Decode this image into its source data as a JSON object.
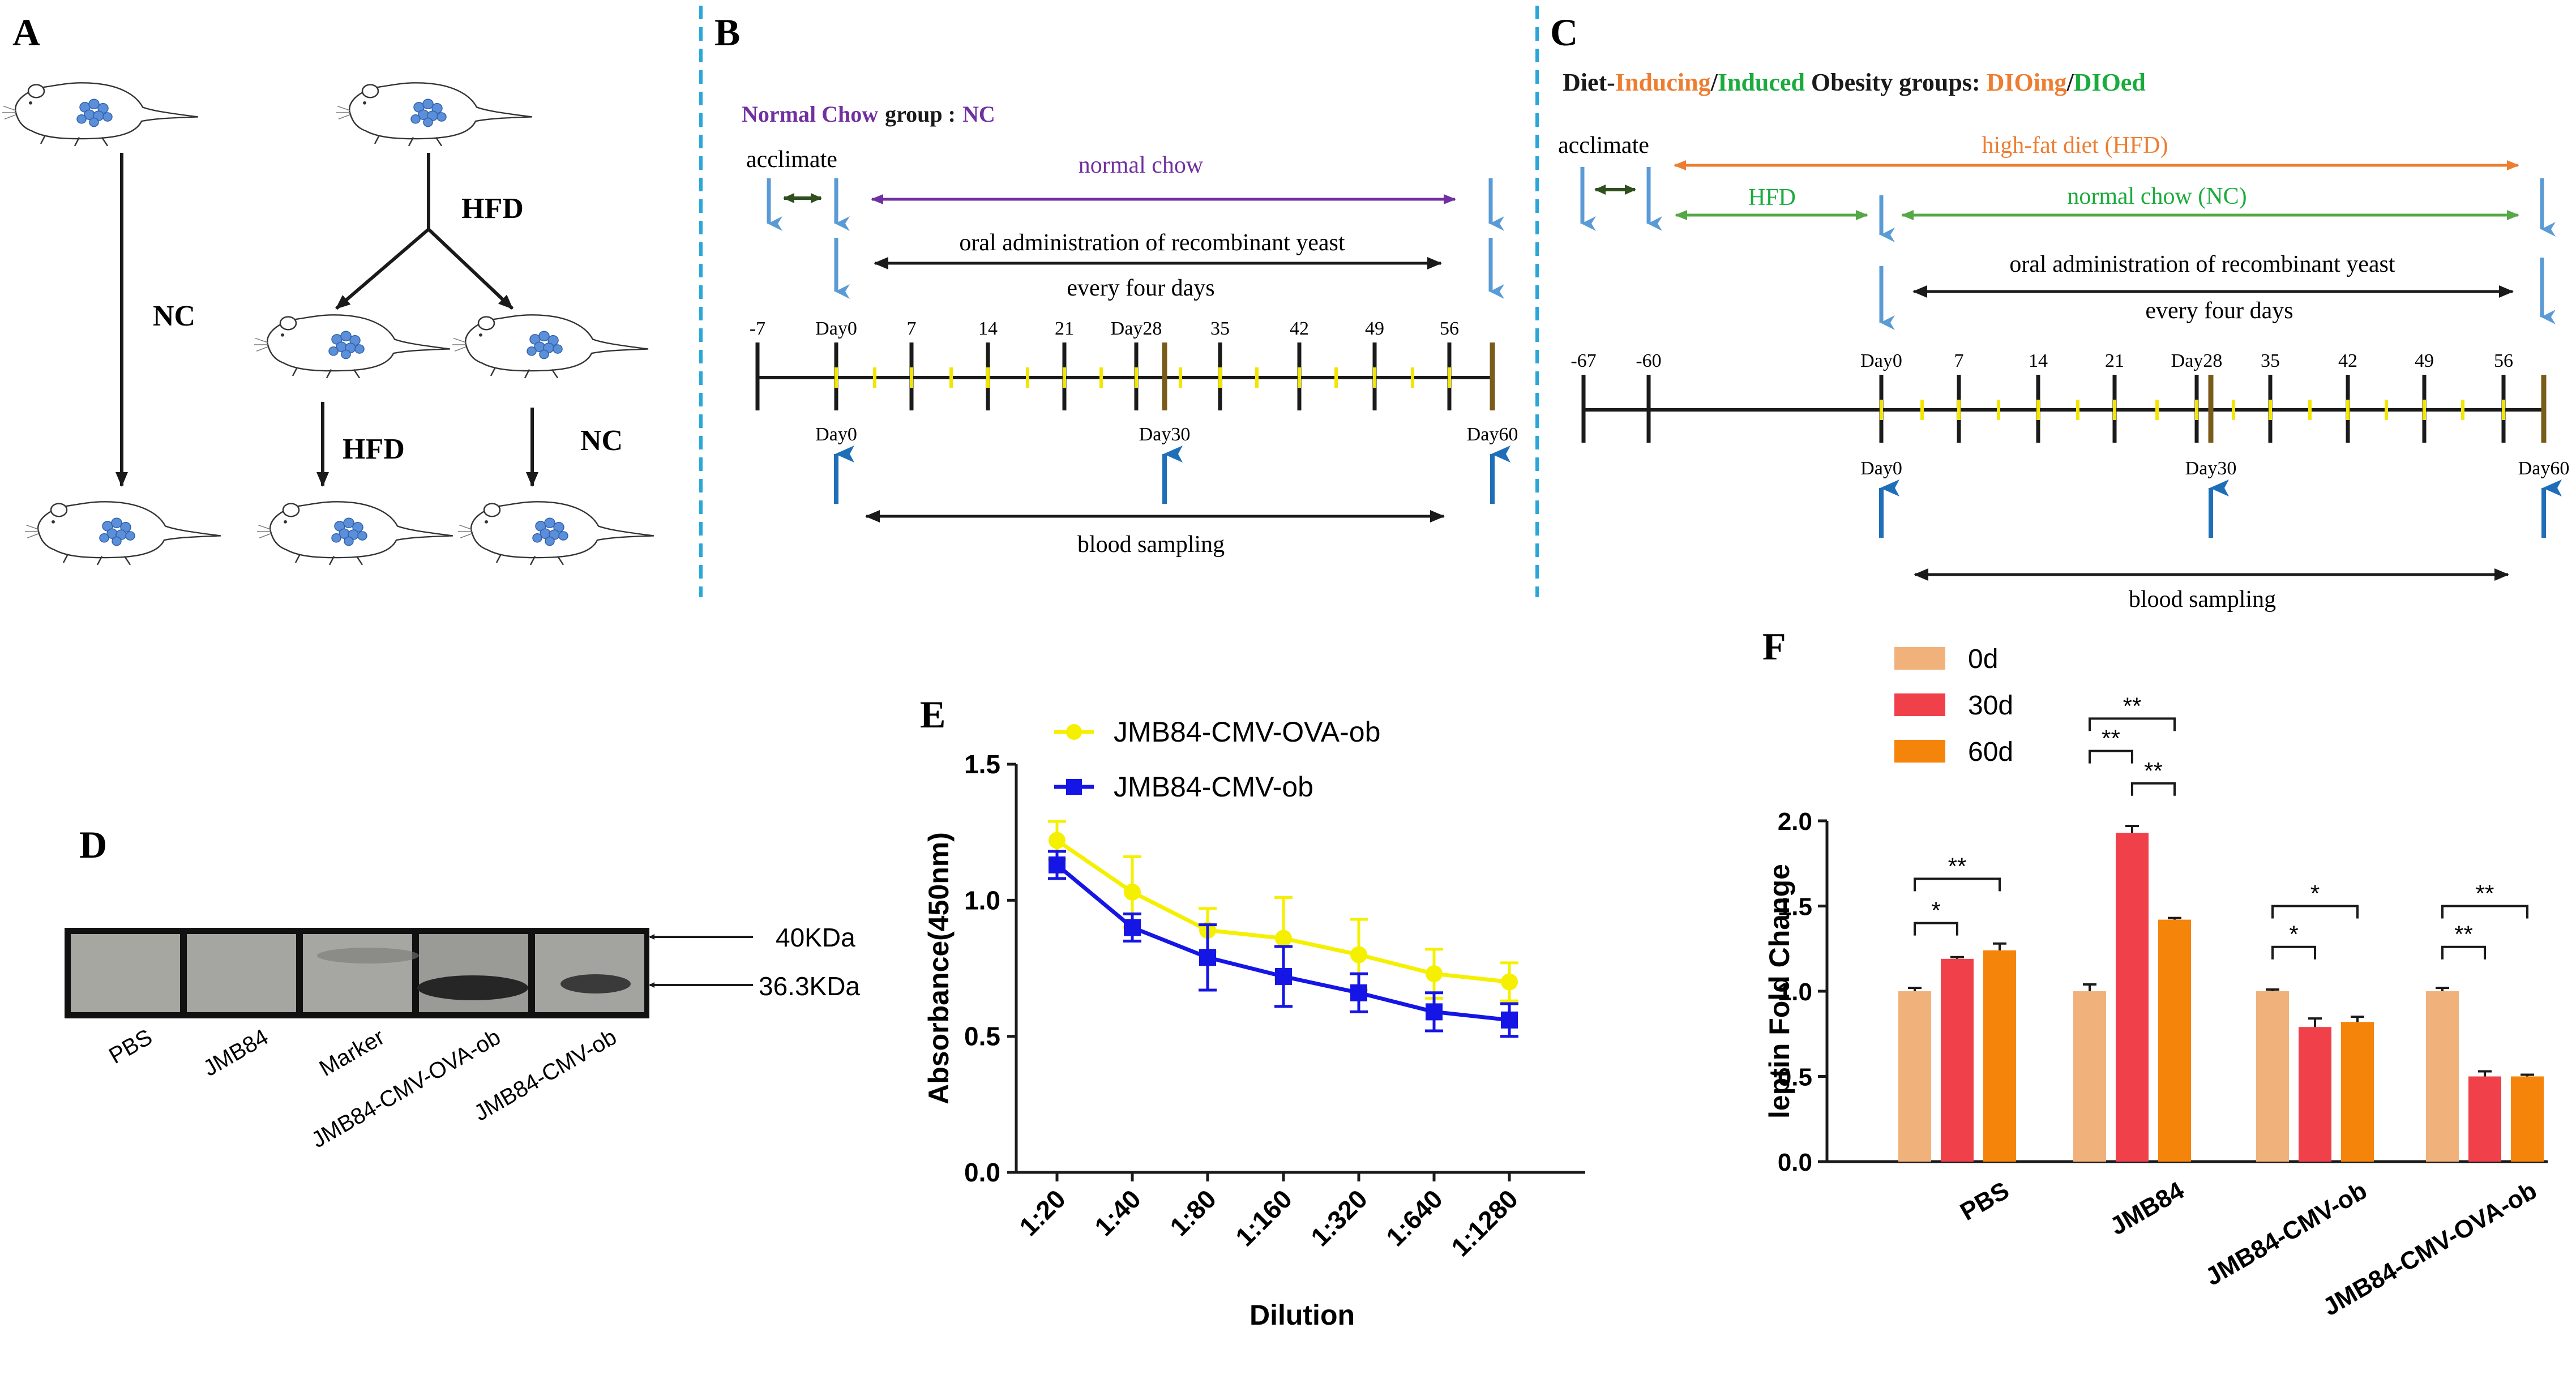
{
  "figure": {
    "panel_labels": {
      "a": "A",
      "b": "B",
      "c": "C",
      "d": "D",
      "e": "E",
      "f": "F"
    },
    "colors": {
      "black": "#1a1a1a",
      "light_blue_arrow": "#5b9bd5",
      "dark_blue_arrow": "#1f6fb8",
      "dark_green": "#2f4f1f",
      "purple": "#7030a0",
      "orange": "#ed7d31",
      "green": "#1aab3c",
      "yellow_mark": "#f2e600",
      "brown_mark": "#7a5c1a",
      "dashed_divider": "#2aa7d9",
      "mouse_organ": "#5b8fd9"
    }
  },
  "panel_a": {
    "labels": {
      "nc_main": "NC",
      "hfd_top": "HFD",
      "hfd_lower": "HFD",
      "nc_lower": "NC"
    }
  },
  "panel_b": {
    "title_nc": "Normal Chow",
    "title_group": "group :",
    "title_abbr": "NC",
    "acclimate": "acclimate",
    "normal_chow": "normal chow",
    "oral": "oral administration of recombinant yeast",
    "every": "every four days",
    "ticks": [
      "-7",
      "Day0",
      "7",
      "14",
      "21",
      "Day28",
      "35",
      "42",
      "49",
      "56"
    ],
    "days_below": [
      "Day0",
      "Day30",
      "Day60"
    ],
    "blood": "blood sampling"
  },
  "panel_c": {
    "title_diet": "Diet-",
    "title_inducing": "Inducing",
    "title_slash": "/",
    "title_induced": "Induced",
    "title_obesity": " Obesity groups: ",
    "title_dioing": "DIOing",
    "title_slash2": "/",
    "title_dioed": "DIOed",
    "acclimate": "acclimate",
    "hfd_long": "high-fat diet (HFD)",
    "hfd_short": "HFD",
    "nc": "normal chow (NC)",
    "oral": "oral administration of recombinant yeast",
    "every": "every four days",
    "ticks": [
      "-67",
      "-60",
      "Day0",
      "7",
      "14",
      "21",
      "Day28",
      "35",
      "42",
      "49",
      "56"
    ],
    "days_below": [
      "Day0",
      "Day30",
      "Day60"
    ],
    "blood": "blood sampling"
  },
  "panel_d": {
    "lanes": [
      "PBS",
      "JMB84",
      "Marker",
      "JMB84-CMV-OVA-ob",
      "JMB84-CMV-ob"
    ],
    "markers": [
      "40KDa",
      "36.3KDa"
    ]
  },
  "chart_data": [
    {
      "panel": "E",
      "type": "line",
      "title": "",
      "xlabel": "Dilution",
      "ylabel": "Absorbance(450nm)",
      "categories": [
        "1:20",
        "1:40",
        "1:80",
        "1:160",
        "1:320",
        "1:640",
        "1:1280"
      ],
      "ylim": [
        0.0,
        1.5
      ],
      "yticks": [
        "0.0",
        "0.5",
        "1.0",
        "1.5"
      ],
      "legend_position": "top",
      "series": [
        {
          "name": "JMB84-CMV-OVA-ob",
          "color": "#f5f000",
          "marker": "circle",
          "values": [
            1.22,
            1.03,
            0.89,
            0.86,
            0.8,
            0.73,
            0.7
          ],
          "errors": [
            0.07,
            0.13,
            0.08,
            0.15,
            0.13,
            0.09,
            0.07
          ]
        },
        {
          "name": "JMB84-CMV-ob",
          "color": "#1515e6",
          "marker": "square",
          "values": [
            1.13,
            0.9,
            0.79,
            0.72,
            0.66,
            0.59,
            0.56
          ],
          "errors": [
            0.05,
            0.05,
            0.12,
            0.11,
            0.07,
            0.07,
            0.06
          ]
        }
      ]
    },
    {
      "panel": "F",
      "type": "bar",
      "title": "",
      "xlabel": "",
      "ylabel": "leptin Fold Change",
      "categories": [
        "PBS",
        "JMB84",
        "JMB84-CMV-ob",
        "JMB84-CMV-OVA-ob"
      ],
      "ylim": [
        0.0,
        2.0
      ],
      "yticks": [
        "0.0",
        "0.5",
        "1.0",
        "1.5",
        "2.0"
      ],
      "legend_position": "top-left",
      "series": [
        {
          "name": "0d",
          "color": "#f0b27a",
          "values": [
            1.0,
            1.0,
            1.0,
            1.0
          ],
          "errors": [
            0.02,
            0.04,
            0.01,
            0.02
          ]
        },
        {
          "name": "30d",
          "color": "#f0404a",
          "values": [
            1.19,
            1.93,
            0.79,
            0.5
          ],
          "errors": [
            0.01,
            0.04,
            0.05,
            0.03
          ]
        },
        {
          "name": "60d",
          "color": "#f5840a",
          "values": [
            1.24,
            1.42,
            0.82,
            0.5
          ],
          "errors": [
            0.04,
            0.01,
            0.03,
            0.01
          ]
        }
      ],
      "significance": [
        {
          "group": 0,
          "from": 0,
          "to": 1,
          "label": "*",
          "y": 1.4
        },
        {
          "group": 0,
          "from": 0,
          "to": 2,
          "label": "**",
          "y": 1.66
        },
        {
          "group": 1,
          "from": 0,
          "to": 2,
          "label": "**",
          "y": 2.6
        },
        {
          "group": 1,
          "from": 0,
          "to": 1,
          "label": "**",
          "y": 2.41
        },
        {
          "group": 1,
          "from": 1,
          "to": 2,
          "label": "**",
          "y": 2.22
        },
        {
          "group": 2,
          "from": 0,
          "to": 1,
          "label": "*",
          "y": 1.26
        },
        {
          "group": 2,
          "from": 0,
          "to": 2,
          "label": "*",
          "y": 1.5
        },
        {
          "group": 3,
          "from": 0,
          "to": 1,
          "label": "**",
          "y": 1.26
        },
        {
          "group": 3,
          "from": 0,
          "to": 2,
          "label": "**",
          "y": 1.5
        }
      ]
    }
  ]
}
